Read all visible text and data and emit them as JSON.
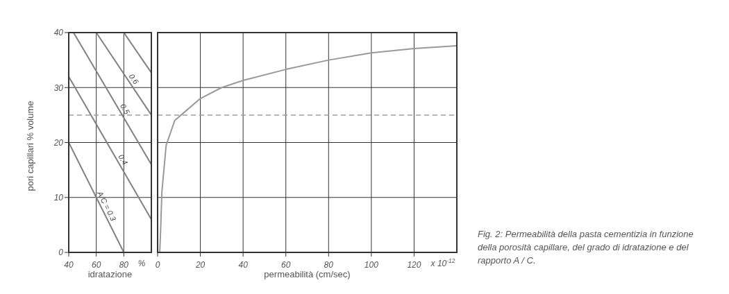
{
  "chart_data": [
    {
      "type": "line",
      "xlabel": "idratazione",
      "ylabel": "pori capillari % volume",
      "xlim": [
        40,
        100
      ],
      "xticks": [
        40,
        60,
        80
      ],
      "ylim": [
        0,
        40
      ],
      "yticks": [
        0,
        10,
        20,
        30,
        40
      ],
      "grid": true,
      "marker": "none",
      "line_style": "solid",
      "series": [
        {
          "name": "A/C = 0.3",
          "color": "#808080",
          "x": [
            40,
            80
          ],
          "values": [
            20,
            0
          ]
        },
        {
          "name": "0.4",
          "color": "#808080",
          "x": [
            40,
            100
          ],
          "values": [
            32,
            6
          ]
        },
        {
          "name": "0.5",
          "color": "#808080",
          "x": [
            43.5,
            100
          ],
          "values": [
            40,
            16
          ]
        },
        {
          "name": "0.6",
          "color": "#808080",
          "x": [
            60,
            100
          ],
          "values": [
            40,
            25
          ]
        },
        {
          "color": "#808080",
          "x": [
            80,
            100
          ],
          "values": [
            40,
            32.7
          ]
        }
      ],
      "ref_lines": [
        {
          "axis": "y",
          "value": 25,
          "color": "#a0a0a0",
          "line_style": "dashed"
        }
      ],
      "annotations": [
        "%"
      ]
    },
    {
      "type": "line",
      "xlabel": "permeabilità (cm/sec)",
      "xlim": [
        0,
        140
      ],
      "xticks": [
        0,
        20,
        40,
        60,
        80,
        100,
        120
      ],
      "ylim": [
        0,
        40
      ],
      "yticks": [
        0,
        10,
        20,
        30,
        40
      ],
      "tick_labels": "x",
      "grid": true,
      "marker": "none",
      "line_style": "solid",
      "series": [
        {
          "color": "#999999",
          "x": [
            1,
            1.5,
            2,
            4,
            8,
            11,
            20,
            30,
            40,
            60,
            80,
            100,
            120,
            140
          ],
          "values": [
            0,
            5,
            11,
            19.5,
            24,
            25,
            28,
            30,
            31.3,
            33.3,
            35,
            36.3,
            37.1,
            37.6
          ]
        }
      ],
      "ref_lines": [
        {
          "axis": "y",
          "value": 25,
          "color": "#a0a0a0",
          "line_style": "dashed"
        }
      ],
      "annotations": [
        "x 10$^{-12}$",
        "Fig. 2: Permeabilità della pasta cementizia in funzione della porosità capillare, del grado di idratazione e del rapporto A / C."
      ]
    }
  ]
}
